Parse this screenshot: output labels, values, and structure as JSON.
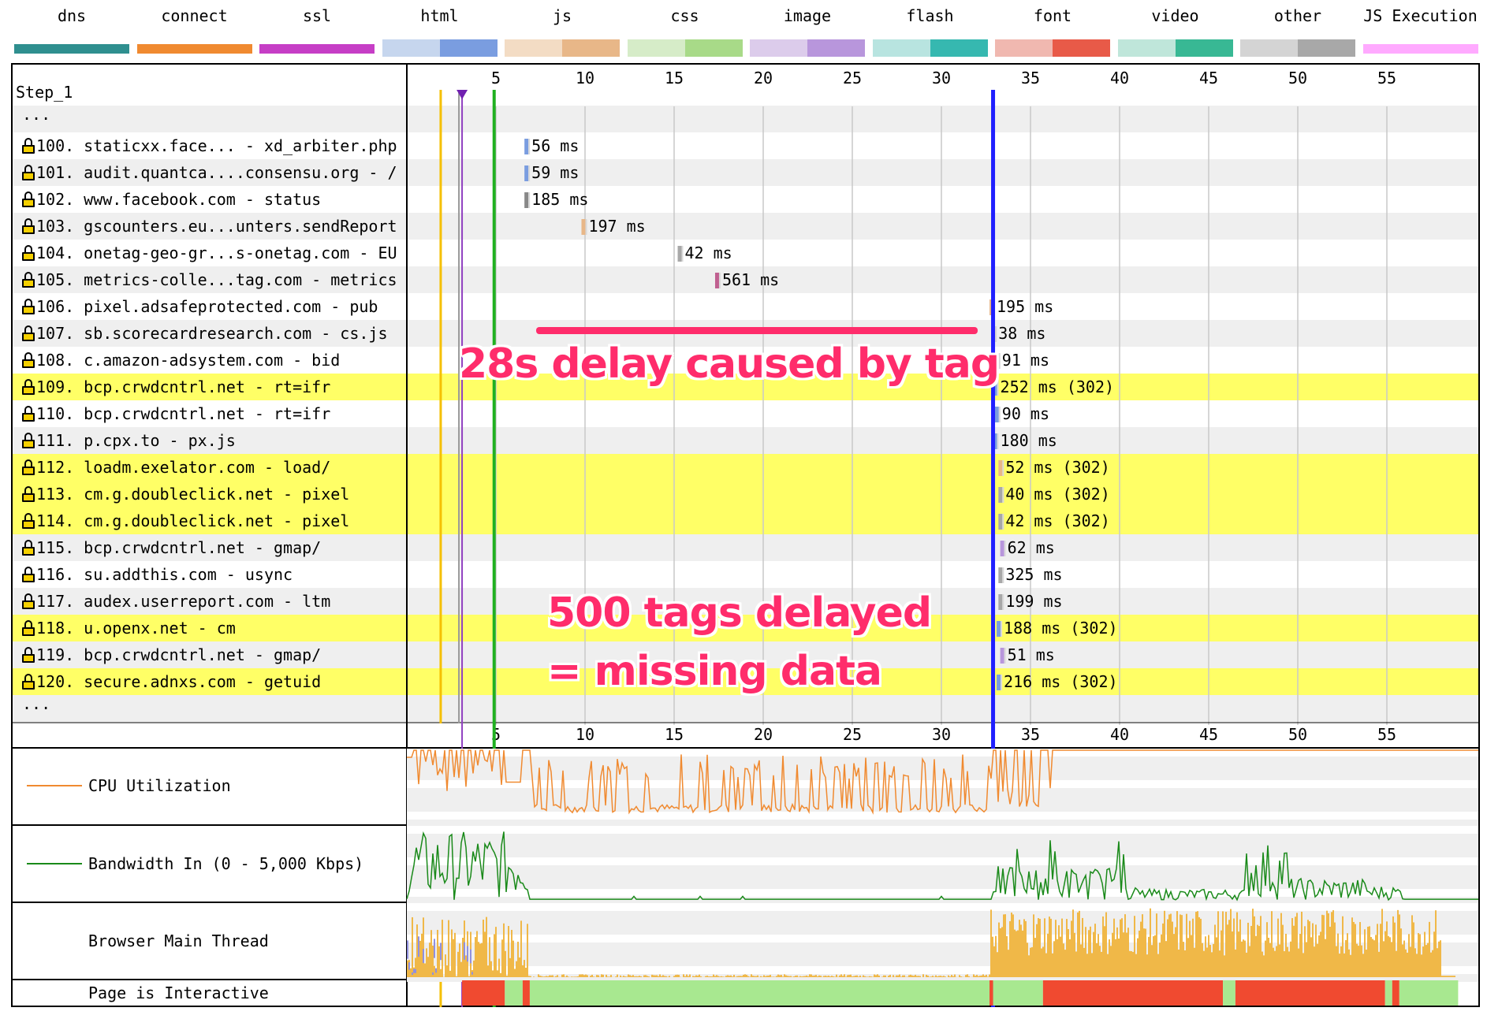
{
  "legend": [
    {
      "name": "dns",
      "a": "#2f8f8f",
      "b": "#2f8f8f",
      "solid": true
    },
    {
      "name": "connect",
      "a": "#f08a30",
      "b": "#f08a30",
      "solid": true
    },
    {
      "name": "ssl",
      "a": "#c63ec6",
      "b": "#c63ec6",
      "solid": true
    },
    {
      "name": "html",
      "a": "#c6d6ee",
      "b": "#7a9de0"
    },
    {
      "name": "js",
      "a": "#f3dcc4",
      "b": "#e8b788"
    },
    {
      "name": "css",
      "a": "#d6ecc8",
      "b": "#a8da88"
    },
    {
      "name": "image",
      "a": "#dccceb",
      "b": "#b896dc"
    },
    {
      "name": "flash",
      "a": "#b8e4e0",
      "b": "#36b8b0"
    },
    {
      "name": "font",
      "a": "#f0b8b0",
      "b": "#e85a48"
    },
    {
      "name": "video",
      "a": "#bfe6da",
      "b": "#38b894"
    },
    {
      "name": "other",
      "a": "#d4d4d4",
      "b": "#a8a8a8"
    },
    {
      "name": "JS Execution",
      "a": "#ffaaff",
      "b": "#ffaaff",
      "solid": true
    }
  ],
  "step_label": "Step_1",
  "ellipsis": "...",
  "requests": [
    {
      "n": "100.",
      "label": "staticxx.face... - xd_arbiter.php",
      "start": 6.6,
      "timing": "56 ms",
      "hl": false,
      "bar": "#7a9de0"
    },
    {
      "n": "101.",
      "label": "audit.quantca....consensu.org - /",
      "start": 6.6,
      "timing": "59 ms",
      "hl": false,
      "bar": "#7a9de0"
    },
    {
      "n": "102.",
      "label": "www.facebook.com - status",
      "start": 6.6,
      "timing": "185 ms",
      "hl": false,
      "bar": "#888"
    },
    {
      "n": "103.",
      "label": "gscounters.eu...unters.sendReport",
      "start": 9.8,
      "timing": "197 ms",
      "hl": false,
      "bar": "#e8b788"
    },
    {
      "n": "104.",
      "label": "onetag-geo-gr...s-onetag.com - EU",
      "start": 15.2,
      "timing": "42 ms",
      "hl": false,
      "bar": "#a8a8a8"
    },
    {
      "n": "105.",
      "label": "metrics-colle...tag.com - metrics",
      "start": 17.3,
      "timing": "561 ms",
      "hl": false,
      "bar": "#c06090"
    },
    {
      "n": "106.",
      "label": "pixel.adsafeprotected.com - pub",
      "start": 32.7,
      "timing": "195 ms",
      "hl": false,
      "bar": "#e8b788"
    },
    {
      "n": "107.",
      "label": "sb.scorecardresearch.com - cs.js",
      "start": 32.8,
      "timing": "38 ms",
      "hl": false,
      "bar": "#e8b788"
    },
    {
      "n": "108.",
      "label": "c.amazon-adsystem.com - bid",
      "start": 33.0,
      "timing": "91 ms",
      "hl": false,
      "bar": "#a8a8a8"
    },
    {
      "n": "109.",
      "label": "bcp.crwdcntrl.net - rt=ifr",
      "start": 32.9,
      "timing": "252 ms (302)",
      "hl": true,
      "bar": "#7a9de0"
    },
    {
      "n": "110.",
      "label": "bcp.crwdcntrl.net - rt=ifr",
      "start": 33.0,
      "timing": "90 ms",
      "hl": false,
      "bar": "#7a9de0"
    },
    {
      "n": "111.",
      "label": "p.cpx.to - px.js",
      "start": 32.9,
      "timing": "180 ms",
      "hl": false,
      "bar": "#7a9de0"
    },
    {
      "n": "112.",
      "label": "loadm.exelator.com - load/",
      "start": 33.2,
      "timing": "52 ms (302)",
      "hl": true,
      "bar": "#e8b788"
    },
    {
      "n": "113.",
      "label": "cm.g.doubleclick.net - pixel",
      "start": 33.2,
      "timing": "40 ms (302)",
      "hl": true,
      "bar": "#a8a8a8"
    },
    {
      "n": "114.",
      "label": "cm.g.doubleclick.net - pixel",
      "start": 33.2,
      "timing": "42 ms (302)",
      "hl": true,
      "bar": "#a8a8a8"
    },
    {
      "n": "115.",
      "label": "bcp.crwdcntrl.net - gmap/",
      "start": 33.3,
      "timing": "62 ms",
      "hl": false,
      "bar": "#b896dc"
    },
    {
      "n": "116.",
      "label": "su.addthis.com - usync",
      "start": 33.2,
      "timing": "325 ms",
      "hl": false,
      "bar": "#a8a8a8"
    },
    {
      "n": "117.",
      "label": "audex.userreport.com - ltm",
      "start": 33.2,
      "timing": "199 ms",
      "hl": false,
      "bar": "#a8a8a8"
    },
    {
      "n": "118.",
      "label": "u.openx.net - cm",
      "start": 33.1,
      "timing": "188 ms (302)",
      "hl": true,
      "bar": "#7a9de0"
    },
    {
      "n": "119.",
      "label": "bcp.crwdcntrl.net - gmap/",
      "start": 33.3,
      "timing": "51 ms",
      "hl": false,
      "bar": "#b896dc"
    },
    {
      "n": "120.",
      "label": "secure.adnxs.com - getuid",
      "start": 33.1,
      "timing": "216 ms (302)",
      "hl": true,
      "bar": "#7a9de0"
    }
  ],
  "axis_ticks": [
    5,
    10,
    15,
    20,
    25,
    30,
    35,
    40,
    45,
    50,
    55
  ],
  "annotations": {
    "delay": "28s delay caused by tag",
    "tags_line1": "500 tags delayed",
    "tags_line2": "= missing data"
  },
  "sub_charts": {
    "cpu": "CPU Utilization",
    "bandwidth": "Bandwidth In (0 - 5,000 Kbps)",
    "main_thread": "Browser Main Thread",
    "interactive": "Page is Interactive"
  },
  "colors": {
    "cpu": "#f08a30",
    "bandwidth": "#1a8a1a",
    "highlight": "#ffff66",
    "annotation": "#ff2c6b",
    "interactive_green": "#a8e890",
    "interactive_red": "#f04a30"
  },
  "chart_data": {
    "type": "bar",
    "x_unit": "seconds",
    "xlim": [
      0,
      59
    ],
    "ticks": [
      5,
      10,
      15,
      20,
      25,
      30,
      35,
      40,
      45,
      50,
      55
    ],
    "markers": [
      {
        "color": "#f5c000",
        "x": 1.9
      },
      {
        "color": "#9040c0",
        "x": 3.1
      },
      {
        "color": "#20b020",
        "x": 4.9
      },
      {
        "color": "#2020ff",
        "x": 32.9
      }
    ],
    "interactive_segments": [
      {
        "from": 3.1,
        "to": 5.5,
        "state": "blocked"
      },
      {
        "from": 5.5,
        "to": 6.5,
        "state": "interactive"
      },
      {
        "from": 6.5,
        "to": 6.9,
        "state": "blocked"
      },
      {
        "from": 6.9,
        "to": 32.7,
        "state": "interactive"
      },
      {
        "from": 32.7,
        "to": 32.9,
        "state": "blocked"
      },
      {
        "from": 32.9,
        "to": 35.7,
        "state": "interactive"
      },
      {
        "from": 35.7,
        "to": 45.8,
        "state": "blocked"
      },
      {
        "from": 45.8,
        "to": 46.5,
        "state": "interactive"
      },
      {
        "from": 46.5,
        "to": 54.9,
        "state": "blocked"
      },
      {
        "from": 54.9,
        "to": 55.3,
        "state": "interactive"
      },
      {
        "from": 55.3,
        "to": 55.7,
        "state": "blocked"
      },
      {
        "from": 55.7,
        "to": 59,
        "state": "interactive"
      }
    ]
  }
}
